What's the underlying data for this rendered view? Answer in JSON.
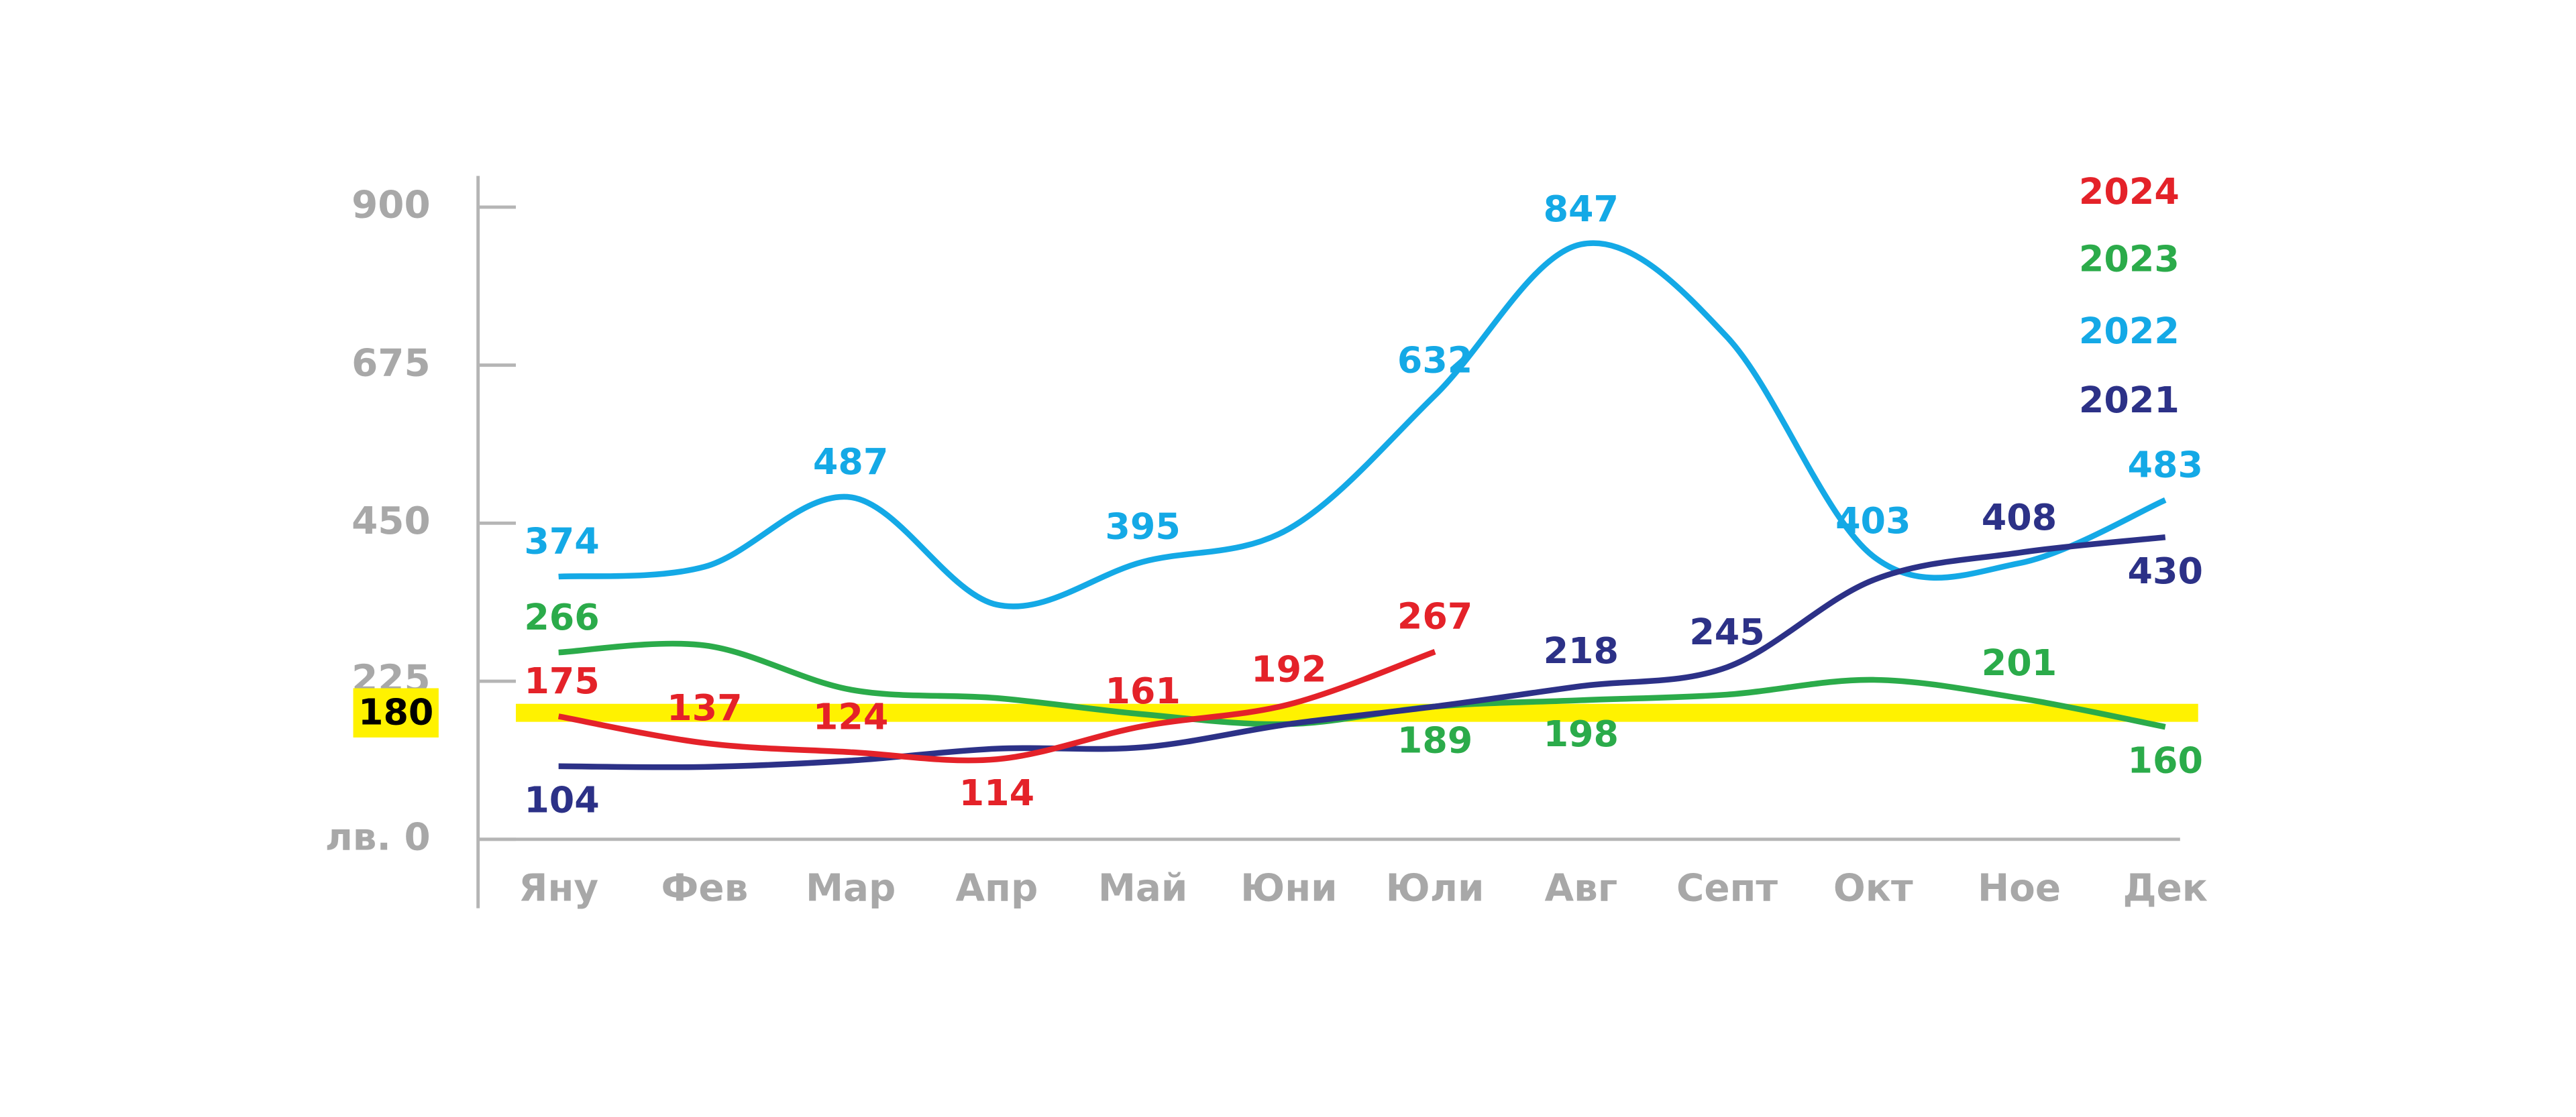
{
  "chart_data": {
    "type": "line",
    "categories": [
      "Яну",
      "Фев",
      "Мар",
      "Апр",
      "Май",
      "Юни",
      "Юли",
      "Авг",
      "Септ",
      "Окт",
      "Ное",
      "Дек"
    ],
    "ylim": [
      0,
      900
    ],
    "yticks": [
      {
        "value": 0,
        "label": "лв. 0"
      },
      225,
      450,
      675,
      900
    ],
    "reference_line": 180,
    "reference_color": "#fff200",
    "series": [
      {
        "name": "2022",
        "color": "#14a9e6",
        "values": [
          374,
          388,
          487,
          334,
          395,
          442,
          632,
          847,
          715,
          403,
          393,
          483
        ],
        "value_labels": [
          "374",
          null,
          "487",
          null,
          "395",
          null,
          "632",
          "847",
          null,
          "403",
          null,
          "483"
        ]
      },
      {
        "name": "2023",
        "color": "#2bab4a",
        "values": [
          266,
          276,
          213,
          201,
          178,
          164,
          189,
          198,
          206,
          227,
          201,
          160
        ],
        "value_labels": [
          "266",
          null,
          null,
          null,
          null,
          null,
          "189",
          "198",
          null,
          null,
          "201",
          "160"
        ]
      },
      {
        "name": "2021",
        "color": "#2c3187",
        "values": [
          104,
          103,
          112,
          129,
          131,
          164,
          189,
          218,
          245,
          369,
          408,
          430
        ],
        "value_labels": [
          "104",
          null,
          null,
          null,
          null,
          null,
          null,
          "218",
          "245",
          null,
          "408",
          "430"
        ]
      },
      {
        "name": "2024",
        "color": "#e42229",
        "values": [
          175,
          137,
          124,
          114,
          161,
          192,
          267,
          null,
          null,
          null,
          null,
          null
        ],
        "value_labels": [
          "175",
          "137",
          "124",
          "114",
          "161",
          "192",
          "267",
          null,
          null,
          null,
          null,
          null
        ]
      }
    ],
    "legend": "top-right"
  }
}
